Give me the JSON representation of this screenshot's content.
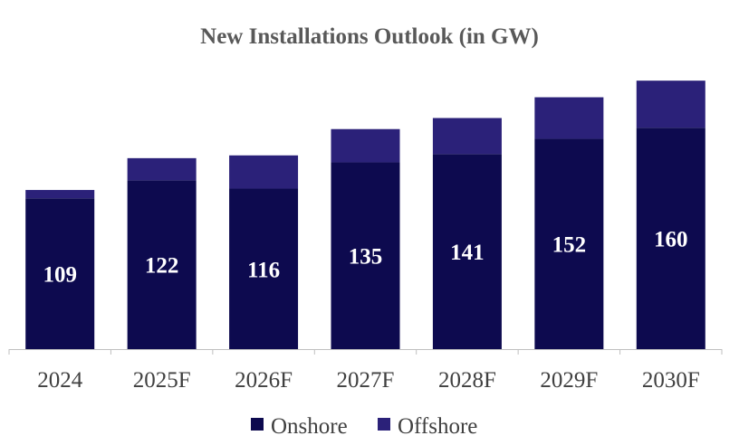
{
  "chart_data": {
    "type": "bar",
    "stacked": true,
    "title": "New Installations Outlook (in GW)",
    "xlabel": "",
    "ylabel": "",
    "categories": [
      "2024",
      "2025F",
      "2026F",
      "2027F",
      "2028F",
      "2029F",
      "2030F"
    ],
    "series": [
      {
        "name": "Onshore",
        "color": "#0d0a4f",
        "values": [
          109,
          122,
          116,
          135,
          141,
          152,
          160
        ],
        "data_labels": [
          "109",
          "122",
          "116",
          "135",
          "141",
          "152",
          "160"
        ]
      },
      {
        "name": "Offshore",
        "color": "#2b2179",
        "values": [
          6,
          16,
          24,
          24,
          26,
          30,
          34
        ]
      }
    ],
    "ylim": [
      0,
      200
    ],
    "grid": false,
    "legend_position": "bottom"
  }
}
